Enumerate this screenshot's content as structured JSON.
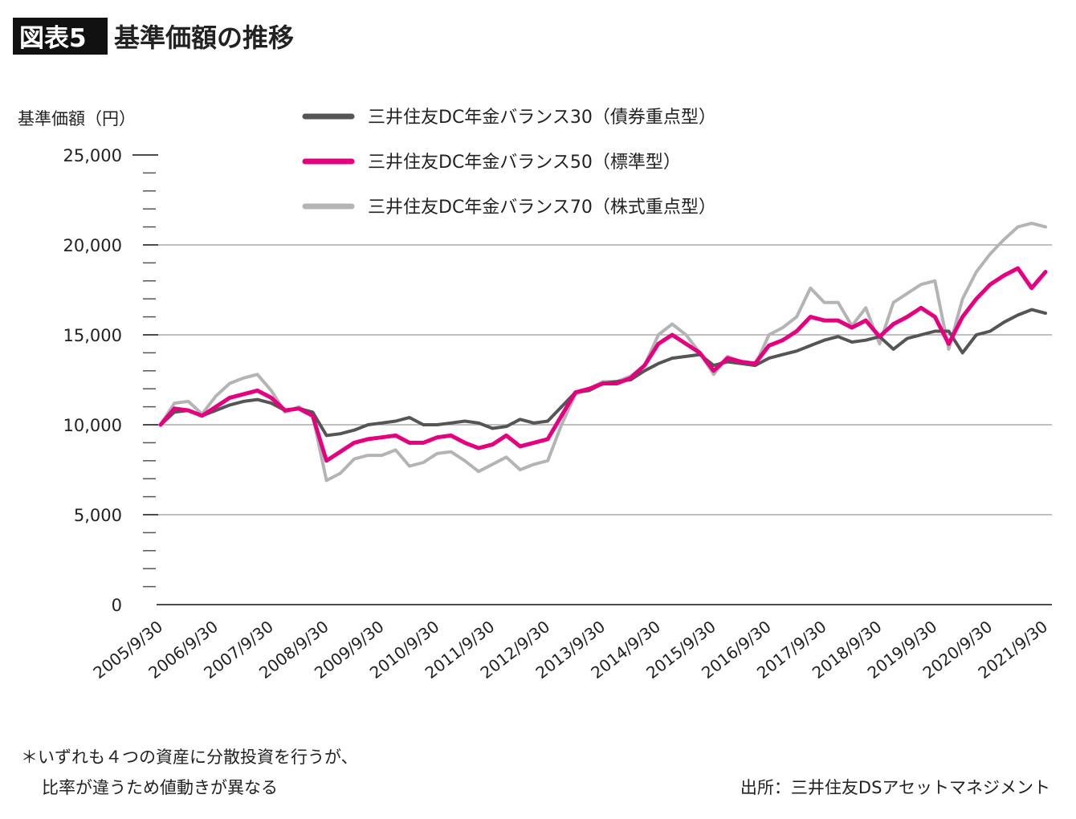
{
  "chart_data": {
    "type": "line",
    "figure_label": "図表5",
    "title": "基準価額の推移",
    "ylabel": "基準価額（円）",
    "xlabel": "",
    "ylim": [
      0,
      25000
    ],
    "yticks": [
      "0",
      "5,000",
      "10,000",
      "15,000",
      "20,000",
      "25,000"
    ],
    "ytick_values": [
      0,
      5000,
      10000,
      15000,
      20000,
      25000
    ],
    "minor_tick_step": 1000,
    "grid": true,
    "legend_position": "top",
    "xticks": [
      "2005/9/30",
      "2006/9/30",
      "2007/9/30",
      "2008/9/30",
      "2009/9/30",
      "2010/9/30",
      "2011/9/30",
      "2012/9/30",
      "2013/9/30",
      "2014/9/30",
      "2015/9/30",
      "2016/9/30",
      "2017/9/30",
      "2018/9/30",
      "2019/9/30",
      "2020/9/30",
      "2021/9/30"
    ],
    "x_start_year": 2005.75,
    "x_end_year": 2021.75,
    "x_step_years": 0.25,
    "series": [
      {
        "name": "三井住友DC年金バランス30（債券重点型）",
        "color": "#555555",
        "values": [
          10000,
          10700,
          10800,
          10500,
          10800,
          11100,
          11300,
          11400,
          11200,
          10800,
          10900,
          10700,
          9400,
          9500,
          9700,
          10000,
          10100,
          10200,
          10400,
          10000,
          10000,
          10100,
          10200,
          10100,
          9800,
          9900,
          10300,
          10100,
          10200,
          11000,
          11800,
          11900,
          12300,
          12400,
          12500,
          13000,
          13400,
          13700,
          13800,
          13900,
          13300,
          13500,
          13400,
          13300,
          13700,
          13900,
          14100,
          14400,
          14700,
          14900,
          14600,
          14700,
          14900,
          14200,
          14800,
          15000,
          15200,
          15200,
          14000,
          15000,
          15200,
          15700,
          16100,
          16400,
          16200
        ]
      },
      {
        "name": "三井住友DC年金バランス50（標準型）",
        "color": "#e4007f",
        "values": [
          10000,
          10900,
          10800,
          10500,
          11000,
          11500,
          11700,
          11900,
          11500,
          10800,
          10900,
          10500,
          8000,
          8500,
          9000,
          9200,
          9300,
          9400,
          9000,
          9000,
          9300,
          9400,
          9000,
          8700,
          8900,
          9400,
          8800,
          9000,
          9200,
          10500,
          11800,
          12000,
          12300,
          12300,
          12600,
          13300,
          14500,
          15000,
          14500,
          14000,
          13000,
          13700,
          13500,
          13400,
          14400,
          14700,
          15200,
          16000,
          15800,
          15800,
          15400,
          15800,
          14900,
          15600,
          16000,
          16500,
          16000,
          14500,
          16000,
          17000,
          17800,
          18300,
          18700,
          17600,
          18500
        ]
      },
      {
        "name": "三井住友DC年金バランス70（株式重点型）",
        "color": "#b4b4b4",
        "values": [
          10000,
          11200,
          11300,
          10600,
          11600,
          12300,
          12600,
          12800,
          11900,
          10700,
          11000,
          10500,
          6900,
          7300,
          8100,
          8300,
          8300,
          8600,
          7700,
          7900,
          8400,
          8500,
          8000,
          7400,
          7800,
          8200,
          7500,
          7800,
          8000,
          10000,
          11700,
          12000,
          12400,
          12400,
          12700,
          13300,
          15000,
          15600,
          15000,
          14000,
          12800,
          13800,
          13500,
          13300,
          15000,
          15400,
          16000,
          17600,
          16800,
          16800,
          15500,
          16500,
          14500,
          16800,
          17300,
          17800,
          18000,
          14200,
          17000,
          18500,
          19500,
          20300,
          21000,
          21200,
          21000
        ]
      }
    ],
    "footnote_lines": [
      "＊いずれも４つの資産に分散投資を行うが、",
      "比率が違うため値動きが異なる"
    ],
    "source": "出所：三井住友DSアセットマネジメント"
  }
}
